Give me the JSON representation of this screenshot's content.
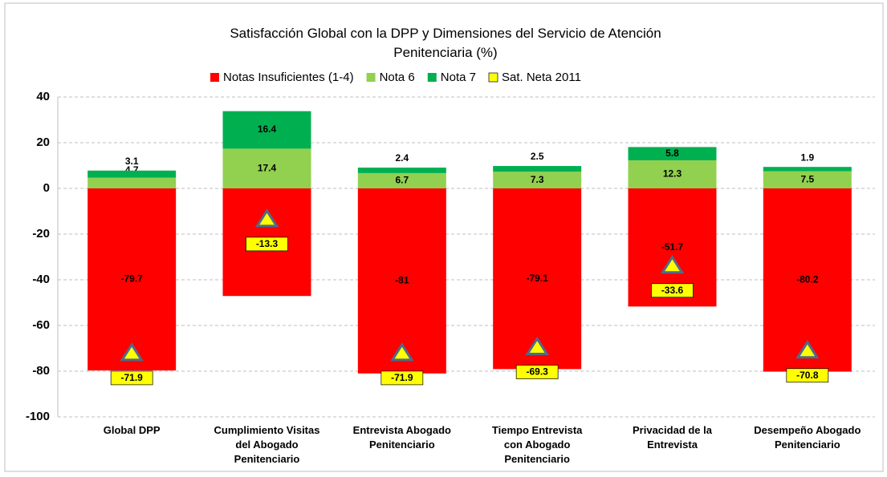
{
  "chart_data": {
    "type": "stacked_bar",
    "title": "Satisfacción Global con la DPP y Dimensiones del Servicio de Atención Penitenciaria (%)",
    "categories": [
      "Global DPP",
      "Cumplimiento Visitas del Abogado Penitenciario",
      "Entrevista Abogado Penitenciario",
      "Tiempo Entrevista con Abogado Penitenciario",
      "Privacidad de la Entrevista",
      "Desempeño Abogado Penitenciario"
    ],
    "series": [
      {
        "name": "Notas Insuficientes (1-4)",
        "color": "#ff0000",
        "values": [
          -79.7,
          -47.1,
          -81,
          -79.1,
          -51.7,
          -80.2
        ]
      },
      {
        "name": "Nota 6",
        "color": "#92d050",
        "values": [
          4.7,
          17.4,
          6.7,
          7.3,
          12.3,
          7.5
        ]
      },
      {
        "name": "Nota 7",
        "color": "#00b050",
        "values": [
          3.1,
          16.4,
          2.4,
          2.5,
          5.8,
          1.9
        ]
      },
      {
        "name": "Sat. Neta 2011",
        "color": "#ffff00",
        "type": "marker",
        "values": [
          -71.9,
          -13.3,
          -71.9,
          -69.3,
          -33.6,
          -70.8
        ]
      }
    ],
    "ylim": [
      -100,
      40
    ],
    "yticks": [
      -100,
      -80,
      -60,
      -40,
      -20,
      0,
      20,
      40
    ],
    "grid": true,
    "legend": "top"
  }
}
